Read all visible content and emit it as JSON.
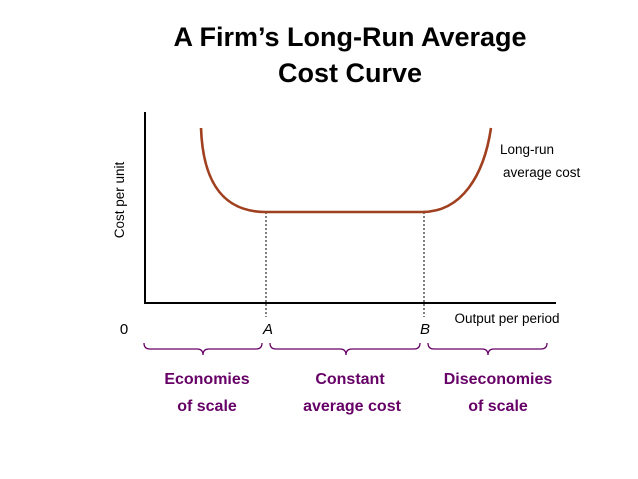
{
  "title": {
    "line1": "A Firm’s Long-Run Average",
    "line2": "Cost Curve"
  },
  "axes": {
    "y_label": "Cost per unit",
    "x_label": "Output per period",
    "origin": "0"
  },
  "curve": {
    "label_line1": "Long-run",
    "label_line2": "average cost",
    "color": "#a0401f"
  },
  "points": {
    "a": "A",
    "b": "B"
  },
  "regions": {
    "color": "#660066",
    "economies": {
      "line1": "Economies",
      "line2": "of scale"
    },
    "constant": {
      "line1": "Constant",
      "line2": "average cost"
    },
    "diseconomies": {
      "line1": "Diseconomies",
      "line2": "of scale"
    }
  }
}
